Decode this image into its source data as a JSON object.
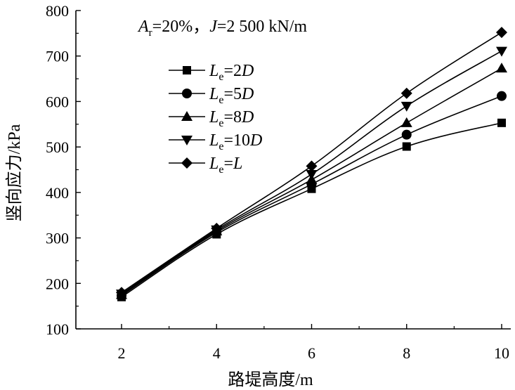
{
  "chart_data": {
    "type": "line",
    "title": "",
    "annotation": {
      "prefix_var": "A",
      "prefix_sub": "r",
      "prefix_rest": "=20%，",
      "j_var": "J",
      "j_rest": "=2 500 kN/m"
    },
    "xlabel": "路堤高度/m",
    "ylabel": "竖向应力/kPa",
    "x": [
      2,
      4,
      6,
      8,
      10
    ],
    "xlim": [
      1,
      10.3
    ],
    "ylim": [
      100,
      800
    ],
    "xticks": [
      2,
      4,
      6,
      8,
      10
    ],
    "yticks": [
      100,
      200,
      300,
      400,
      500,
      600,
      700,
      800
    ],
    "legend_position": "upper-left",
    "series": [
      {
        "name": "Le=2D",
        "var": "L",
        "sub": "e",
        "eq": "=2",
        "tail": "D",
        "marker": "square",
        "values": [
          170,
          308,
          408,
          501,
          553
        ]
      },
      {
        "name": "Le=5D",
        "var": "L",
        "sub": "e",
        "eq": "=5",
        "tail": "D",
        "marker": "circle",
        "values": [
          173,
          312,
          418,
          527,
          612
        ]
      },
      {
        "name": "Le=8D",
        "var": "L",
        "sub": "e",
        "eq": "=8",
        "tail": "D",
        "marker": "triangle-up",
        "values": [
          175,
          315,
          428,
          553,
          673
        ]
      },
      {
        "name": "Le=10D",
        "var": "L",
        "sub": "e",
        "eq": "=10",
        "tail": "D",
        "marker": "triangle-down",
        "values": [
          177,
          318,
          440,
          590,
          711
        ]
      },
      {
        "name": "Le=L",
        "var": "L",
        "sub": "e",
        "eq": "=",
        "tail": "L",
        "marker": "diamond",
        "values": [
          180,
          321,
          458,
          618,
          752
        ]
      }
    ]
  }
}
